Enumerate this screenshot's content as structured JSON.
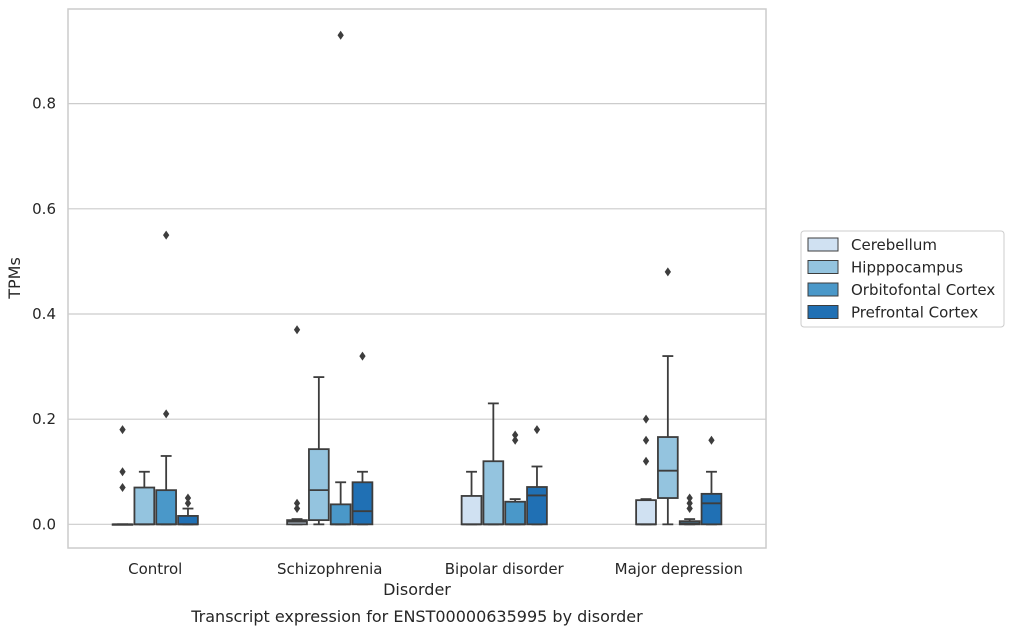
{
  "chart_data": {
    "type": "box",
    "title": "",
    "caption": "Transcript expression for ENST00000635995 by disorder",
    "xlabel": "Disorder",
    "ylabel": "TPMs",
    "ylim": [
      -0.045,
      0.98
    ],
    "yticks": [
      0.0,
      0.2,
      0.4,
      0.6,
      0.8
    ],
    "ytick_labels": [
      "0.0",
      "0.2",
      "0.4",
      "0.6",
      "0.8"
    ],
    "grid": "horizontal",
    "legend_position": "center-right",
    "categories": [
      "Control",
      "Schizophrenia",
      "Bipolar disorder",
      "Major depression"
    ],
    "series": [
      {
        "name": "Cerebellum",
        "color": "#d0e1f2",
        "boxes": [
          {
            "whislo": 0.0,
            "q1": 0.0,
            "med": 0.0,
            "q3": 0.0,
            "whishi": 0.0,
            "fliers": [
              0.07,
              0.1,
              0.18
            ]
          },
          {
            "whislo": 0.0,
            "q1": 0.0,
            "med": 0.005,
            "q3": 0.008,
            "whishi": 0.01,
            "fliers": [
              0.03,
              0.04,
              0.37
            ]
          },
          {
            "whislo": 0.0,
            "q1": 0.0,
            "med": 0.0,
            "q3": 0.054,
            "whishi": 0.1,
            "fliers": []
          },
          {
            "whislo": 0.0,
            "q1": 0.0,
            "med": 0.0,
            "q3": 0.046,
            "whishi": 0.048,
            "fliers": [
              0.12,
              0.16,
              0.2
            ]
          }
        ]
      },
      {
        "name": "Hipppocampus",
        "color": "#94c4df",
        "boxes": [
          {
            "whislo": 0.0,
            "q1": 0.0,
            "med": 0.0,
            "q3": 0.07,
            "whishi": 0.1,
            "fliers": []
          },
          {
            "whislo": 0.0,
            "q1": 0.008,
            "med": 0.065,
            "q3": 0.143,
            "whishi": 0.28,
            "fliers": []
          },
          {
            "whislo": 0.0,
            "q1": 0.0,
            "med": 0.0,
            "q3": 0.12,
            "whishi": 0.23,
            "fliers": []
          },
          {
            "whislo": 0.0,
            "q1": 0.05,
            "med": 0.102,
            "q3": 0.166,
            "whishi": 0.32,
            "fliers": [
              0.48
            ]
          }
        ]
      },
      {
        "name": "Orbitofontal Cortex",
        "color": "#4a98c9",
        "boxes": [
          {
            "whislo": 0.0,
            "q1": 0.0,
            "med": 0.0,
            "q3": 0.065,
            "whishi": 0.13,
            "fliers": [
              0.21,
              0.55
            ]
          },
          {
            "whislo": 0.0,
            "q1": 0.0,
            "med": 0.0,
            "q3": 0.038,
            "whishi": 0.08,
            "fliers": [
              0.93
            ]
          },
          {
            "whislo": 0.0,
            "q1": 0.0,
            "med": 0.0,
            "q3": 0.043,
            "whishi": 0.048,
            "fliers": [
              0.16,
              0.17
            ]
          },
          {
            "whislo": 0.0,
            "q1": 0.0,
            "med": 0.002,
            "q3": 0.006,
            "whishi": 0.01,
            "fliers": [
              0.03,
              0.04,
              0.05
            ]
          }
        ]
      },
      {
        "name": "Prefrontal Cortex",
        "color": "#2070b4",
        "boxes": [
          {
            "whislo": 0.0,
            "q1": 0.0,
            "med": 0.0,
            "q3": 0.016,
            "whishi": 0.03,
            "fliers": [
              0.04,
              0.05
            ]
          },
          {
            "whislo": 0.0,
            "q1": 0.0,
            "med": 0.025,
            "q3": 0.08,
            "whishi": 0.1,
            "fliers": [
              0.32
            ]
          },
          {
            "whislo": 0.0,
            "q1": 0.0,
            "med": 0.055,
            "q3": 0.071,
            "whishi": 0.11,
            "fliers": [
              0.18
            ]
          },
          {
            "whislo": 0.0,
            "q1": 0.0,
            "med": 0.04,
            "q3": 0.058,
            "whishi": 0.1,
            "fliers": [
              0.16
            ]
          }
        ]
      }
    ]
  }
}
